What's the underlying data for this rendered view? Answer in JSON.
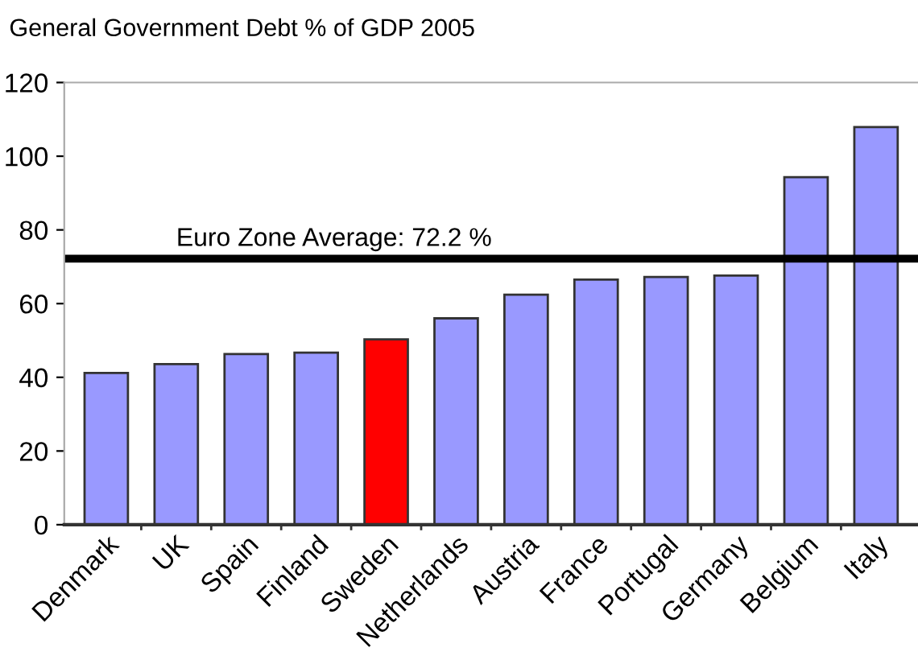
{
  "chart_data": {
    "type": "bar",
    "title": "General Government Debt % of GDP 2005",
    "categories": [
      "Denmark",
      "UK",
      "Spain",
      "Finland",
      "Sweden",
      "Netherlands",
      "Austria",
      "France",
      "Portugal",
      "Germany",
      "Belgium",
      "Italy"
    ],
    "values": [
      41.2,
      43.6,
      46.3,
      46.7,
      50.3,
      56.0,
      62.4,
      66.5,
      67.2,
      67.6,
      94.3,
      107.9
    ],
    "colors": [
      "#9999ff",
      "#9999ff",
      "#9999ff",
      "#9999ff",
      "#ff0000",
      "#9999ff",
      "#9999ff",
      "#9999ff",
      "#9999ff",
      "#9999ff",
      "#9999ff",
      "#9999ff"
    ],
    "ylim": [
      0,
      120
    ],
    "yticks": [
      0,
      20,
      40,
      60,
      80,
      100,
      120
    ],
    "grid": false,
    "ref_lines": [
      {
        "axis": "y",
        "value": 72.2,
        "label": "Euro Zone Average: 72.2 %",
        "color": "#000000"
      }
    ]
  }
}
